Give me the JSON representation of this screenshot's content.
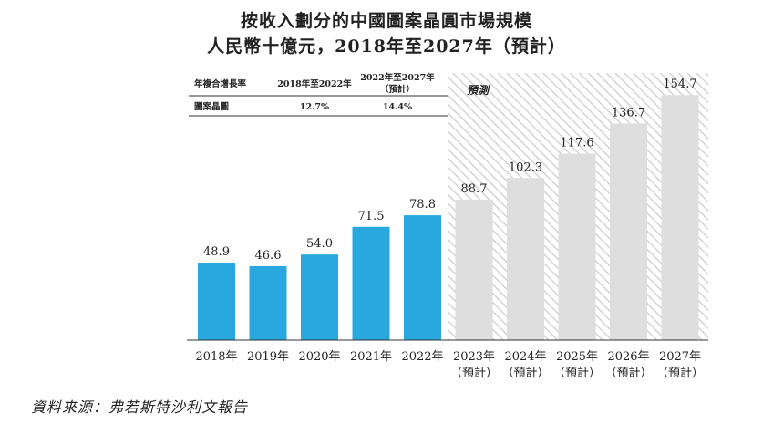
{
  "chart_data": {
    "type": "bar",
    "title": "按收入劃分的中國圖案晶圓市場規模",
    "subtitle": "人民幣十億元，2018年至2027年（預計）",
    "categories": [
      "2018年",
      "2019年",
      "2020年",
      "2021年",
      "2022年",
      "2023年",
      "2024年",
      "2025年",
      "2026年",
      "2027年"
    ],
    "category_notes": [
      "",
      "",
      "",
      "",
      "",
      "（預計）",
      "（預計）",
      "（預計）",
      "（預計）",
      "（預計）"
    ],
    "values": [
      48.9,
      46.6,
      54.0,
      71.5,
      78.8,
      88.7,
      102.3,
      117.6,
      136.7,
      154.7
    ],
    "value_labels": [
      "48.9",
      "46.6",
      "54.0",
      "71.5",
      "78.8",
      "88.7",
      "102.3",
      "117.6",
      "136.7",
      "154.7"
    ],
    "forecast_start_index": 5,
    "forecast_label": "預測",
    "colors": {
      "actual": "#29a8e0",
      "forecast": "#dedede",
      "hatch": "#d0d0d0"
    },
    "ylim": [
      0,
      160
    ],
    "grid": false,
    "legend": "none",
    "cagr_table": {
      "header": [
        "年複合增長率",
        "2018年至2022年",
        "2022年至2027年",
        "（預計）"
      ],
      "row": [
        "圖案晶圓",
        "12.7%",
        "14.4%"
      ]
    },
    "source": "資料來源：弗若斯特沙利文報告"
  }
}
